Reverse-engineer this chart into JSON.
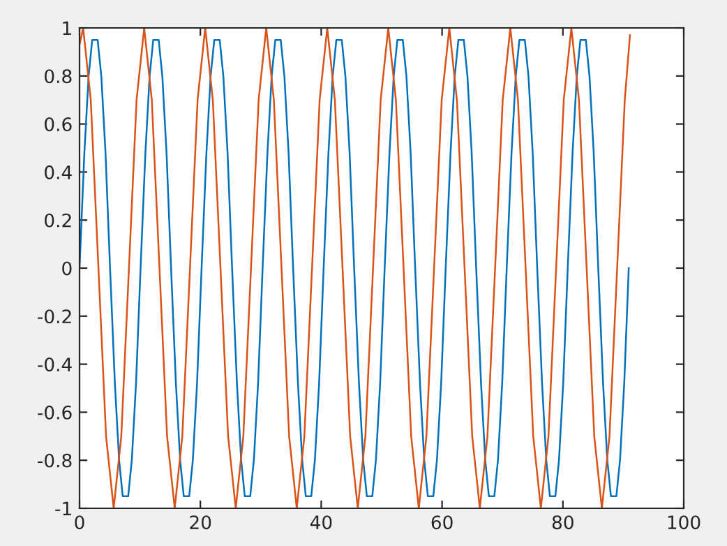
{
  "chart_data": {
    "type": "line",
    "xlim": [
      0,
      100
    ],
    "xticks": [
      0,
      20,
      40,
      60,
      80,
      100
    ],
    "ylim": [
      -1,
      1
    ],
    "yticks": [
      -1,
      -0.8,
      -0.6,
      -0.4,
      -0.2,
      0,
      0.2,
      0.4,
      0.6,
      0.8,
      1
    ],
    "grid": false,
    "marker": "none",
    "line_style": "solid",
    "series": [
      {
        "color": "#0072bd",
        "x": [
          0,
          0.8,
          1.5,
          2.1,
          3,
          3.6,
          4.3,
          5.05,
          5.85,
          6.55,
          7.15,
          8.05,
          8.65,
          9.35,
          10.1,
          10.9,
          11.6,
          12.2,
          13.1,
          13.7,
          14.4,
          15.15,
          15.95,
          16.65,
          17.25,
          18.15,
          18.75,
          19.45,
          20.2,
          21,
          21.7,
          22.3,
          23.2,
          23.8,
          24.5,
          25.25,
          26.05,
          26.75,
          27.35,
          28.25,
          28.85,
          29.55,
          30.3,
          31.1,
          31.8,
          32.4,
          33.3,
          33.9,
          34.6,
          35.35,
          36.15,
          36.85,
          37.45,
          38.35,
          38.95,
          39.65,
          40.4,
          41.2,
          41.9,
          42.5,
          43.4,
          44,
          44.7,
          45.45,
          46.25,
          46.95,
          47.55,
          48.45,
          49.05,
          49.75,
          50.5,
          51.3,
          52,
          52.6,
          53.5,
          54.1,
          54.8,
          55.55,
          56.35,
          57.05,
          57.65,
          58.55,
          59.15,
          59.85,
          60.6,
          61.4,
          62.1,
          62.7,
          63.6,
          64.2,
          64.9,
          65.65,
          66.45,
          67.15,
          67.75,
          68.65,
          69.25,
          69.95,
          70.7,
          71.5,
          72.2,
          72.8,
          73.7,
          74.3,
          75,
          75.75,
          76.55,
          77.25,
          77.85,
          78.75,
          79.35,
          80.05,
          80.8,
          81.6,
          82.3,
          82.9,
          83.8,
          84.4,
          85.1,
          85.85,
          86.65,
          87.35,
          87.95,
          88.85,
          89.45,
          90.15,
          90.9
        ],
        "values": [
          0,
          0.48,
          0.8,
          0.95,
          0.95,
          0.8,
          0.48,
          0,
          -0.48,
          -0.8,
          -0.95,
          -0.95,
          -0.8,
          -0.48,
          0,
          0.48,
          0.8,
          0.95,
          0.95,
          0.8,
          0.48,
          0,
          -0.48,
          -0.8,
          -0.95,
          -0.95,
          -0.8,
          -0.48,
          0,
          0.48,
          0.8,
          0.95,
          0.95,
          0.8,
          0.48,
          0,
          -0.48,
          -0.8,
          -0.95,
          -0.95,
          -0.8,
          -0.48,
          0,
          0.48,
          0.8,
          0.95,
          0.95,
          0.8,
          0.48,
          0,
          -0.48,
          -0.8,
          -0.95,
          -0.95,
          -0.8,
          -0.48,
          0,
          0.48,
          0.8,
          0.95,
          0.95,
          0.8,
          0.48,
          0,
          -0.48,
          -0.8,
          -0.95,
          -0.95,
          -0.8,
          -0.48,
          0,
          0.48,
          0.8,
          0.95,
          0.95,
          0.8,
          0.48,
          0,
          -0.48,
          -0.8,
          -0.95,
          -0.95,
          -0.8,
          -0.48,
          0,
          0.48,
          0.8,
          0.95,
          0.95,
          0.8,
          0.48,
          0,
          -0.48,
          -0.8,
          -0.95,
          -0.95,
          -0.8,
          -0.48,
          0,
          0.48,
          0.8,
          0.95,
          0.95,
          0.8,
          0.48,
          0,
          -0.48,
          -0.8,
          -0.95,
          -0.95,
          -0.8,
          -0.48,
          0,
          0.48,
          0.8,
          0.95,
          0.95,
          0.8,
          0.48,
          0,
          -0.48,
          -0.8,
          -0.95,
          -0.95,
          -0.8,
          -0.48,
          0
        ]
      },
      {
        "color": "#d95319",
        "x": [
          0,
          0.6,
          1.86,
          3.13,
          4.39,
          5.65,
          6.91,
          8.18,
          9.44,
          10.7,
          11.96,
          13.23,
          14.49,
          15.75,
          17.01,
          18.28,
          19.54,
          20.8,
          22.06,
          23.33,
          24.59,
          25.85,
          27.11,
          28.38,
          29.64,
          30.9,
          32.16,
          33.43,
          34.69,
          35.95,
          37.21,
          38.48,
          39.74,
          41,
          42.26,
          43.53,
          44.79,
          46.05,
          47.31,
          48.58,
          49.84,
          51.1,
          52.36,
          53.63,
          54.89,
          56.15,
          57.41,
          58.68,
          59.94,
          61.2,
          62.46,
          63.73,
          64.99,
          66.25,
          67.51,
          68.78,
          70.04,
          71.3,
          72.56,
          73.83,
          75.09,
          76.35,
          77.61,
          78.88,
          80.14,
          81.4,
          82.66,
          83.93,
          85.19,
          86.45,
          87.71,
          88.98,
          90.24,
          91.1
        ],
        "values": [
          0.93,
          1,
          0.7,
          0,
          -0.7,
          -1,
          -0.7,
          0,
          0.7,
          1,
          0.7,
          0,
          -0.7,
          -1,
          -0.7,
          0,
          0.7,
          1,
          0.7,
          0,
          -0.7,
          -1,
          -0.7,
          0,
          0.7,
          1,
          0.7,
          0,
          -0.7,
          -1,
          -0.7,
          0,
          0.7,
          1,
          0.7,
          0,
          -0.7,
          -1,
          -0.7,
          0,
          0.7,
          1,
          0.7,
          0,
          -0.7,
          -1,
          -0.7,
          0,
          0.7,
          1,
          0.7,
          0,
          -0.7,
          -1,
          -0.7,
          0,
          0.7,
          1,
          0.7,
          0,
          -0.7,
          -1,
          -0.7,
          0,
          0.7,
          1,
          0.7,
          0,
          -0.7,
          -1,
          -0.7,
          0,
          0.7,
          0.97
        ]
      }
    ]
  }
}
